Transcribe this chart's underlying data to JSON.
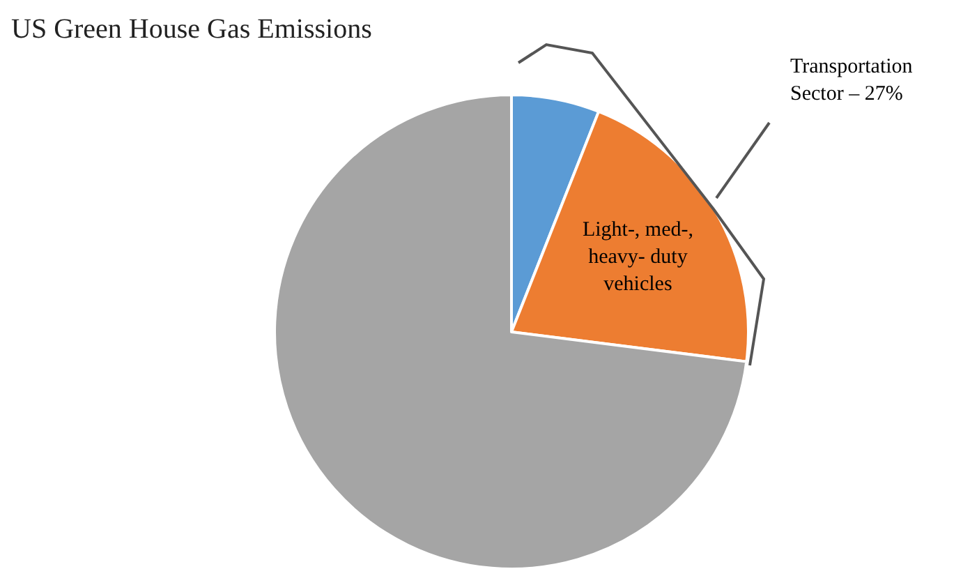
{
  "chart_data": {
    "type": "pie",
    "title": "US Green House Gas Emissions",
    "categories": [
      null,
      "Light-, med-, heavy- duty vehicles",
      null
    ],
    "values": [
      6,
      21,
      73
    ],
    "colors": [
      "#5b9bd5",
      "#ed7d31",
      "#a5a5a5"
    ],
    "annotations": [
      "Transportation Sector – 27%"
    ],
    "legend": false
  }
}
